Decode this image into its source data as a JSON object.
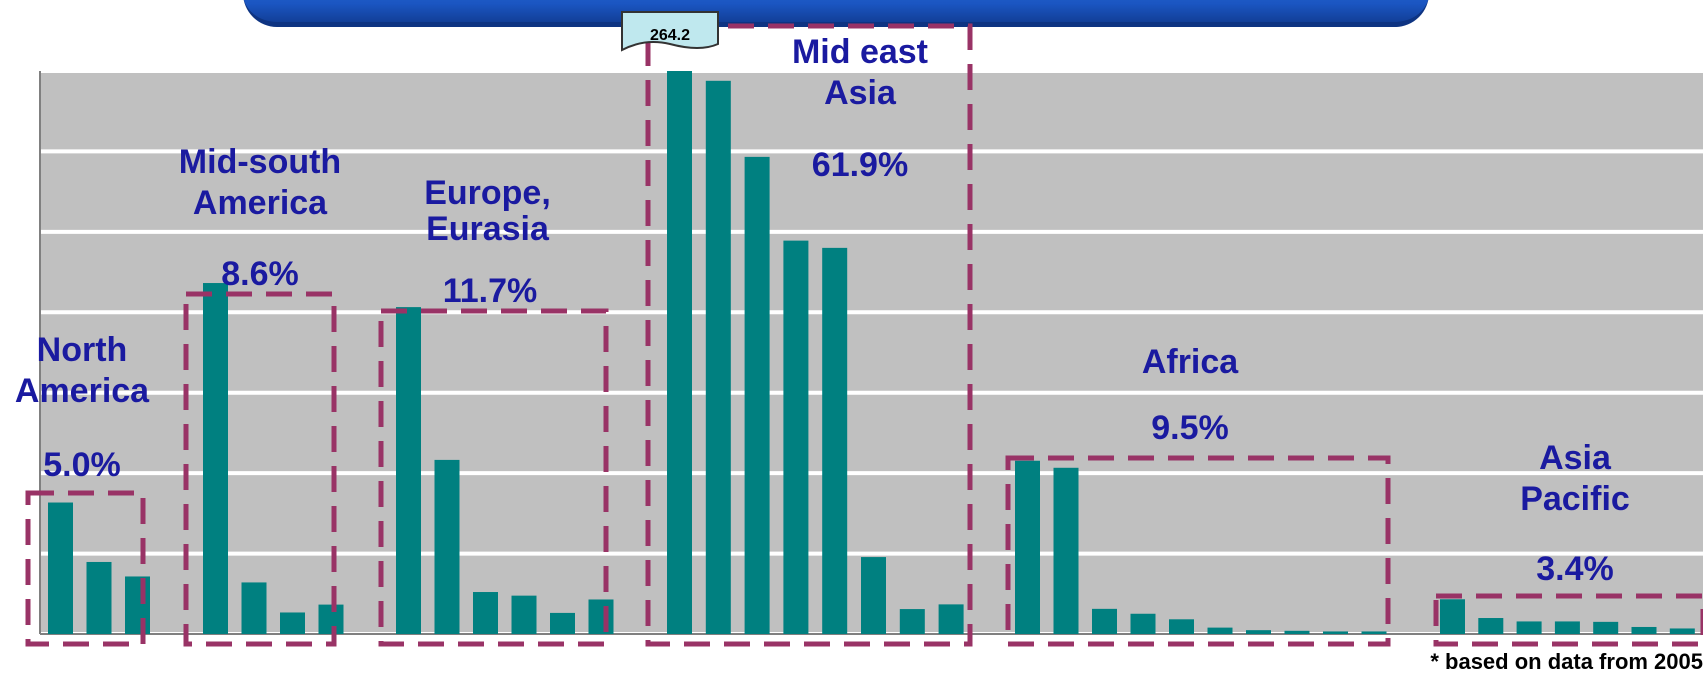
{
  "chart_data": {
    "type": "bar",
    "ylim": [
      0,
      264.2
    ],
    "grid": true,
    "callout_value": "264.2",
    "values": [
      61.7,
      33.8,
      27.0,
      164.7,
      24.2,
      10.1,
      13.8,
      153.4,
      81.7,
      19.7,
      18.0,
      9.9,
      16.2,
      264.2,
      259.6,
      223.9,
      184.6,
      181.2,
      36.1,
      11.7,
      13.9,
      81.3,
      78.0,
      11.8,
      9.5,
      6.9,
      3.0,
      1.8,
      1.5,
      1.2,
      1.2,
      16.3,
      7.5,
      5.9,
      5.9,
      5.7,
      3.3,
      2.6
    ],
    "regions": [
      {
        "name": "North\nAmerica",
        "share": "5.0%",
        "color": "#993366",
        "first": 0,
        "count": 3
      },
      {
        "name": "Mid-south\nAmerica",
        "share": "8.6%",
        "color": "#993366",
        "first": 3,
        "count": 4
      },
      {
        "name": "Europe,\nEurasia",
        "share": "11.7%",
        "color": "#993366",
        "first": 7,
        "count": 6
      },
      {
        "name": "Mid east\nAsia",
        "share": "61.9%",
        "color": "#993366",
        "first": 13,
        "count": 8
      },
      {
        "name": "Africa",
        "share": "9.5%",
        "color": "#993366",
        "first": 21,
        "count": 10
      },
      {
        "name": "Asia\nPacific",
        "share": "3.4%",
        "color": "#993366",
        "first": 31,
        "count": 7
      }
    ],
    "bar_color": "#008080",
    "plot_background": "#c0c0c0",
    "gridline_color": "#ffffff"
  },
  "footnote": "* based on data from 2005"
}
